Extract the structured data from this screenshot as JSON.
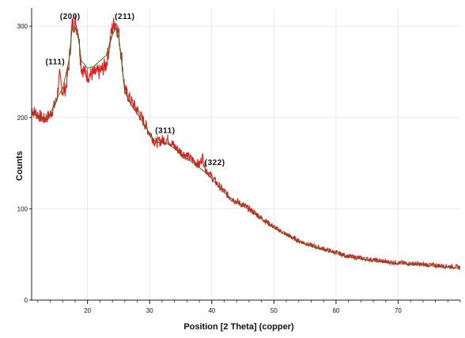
{
  "chart_data": {
    "type": "line",
    "title": "",
    "xlabel": "Position [2 Theta] (copper)",
    "ylabel": "Counts",
    "xlim": [
      11,
      80
    ],
    "ylim": [
      0,
      320
    ],
    "x_ticks": [
      20,
      30,
      40,
      50,
      60,
      70
    ],
    "x_tick_labels": [
      "20",
      "30",
      "40",
      "50",
      "60",
      "70"
    ],
    "y_ticks": [
      0,
      100,
      200,
      300
    ],
    "y_tick_labels": [
      "0",
      "100",
      "200",
      "300"
    ],
    "grid": true,
    "colors": {
      "observed": "#dd1d1d",
      "fit": "#1f7a1f"
    },
    "series": [
      {
        "x": [
          11,
          12,
          13,
          14,
          15,
          15.5,
          16,
          16.5,
          17,
          17.5,
          18,
          18.5,
          19,
          19.5,
          20,
          21,
          22,
          23,
          24,
          24.5,
          25,
          25.5,
          26,
          27,
          28,
          29,
          30,
          31,
          32,
          33,
          34,
          35,
          36,
          37,
          38,
          38.5,
          39,
          40,
          41,
          42,
          43,
          44,
          45,
          46,
          48,
          50,
          52,
          54,
          56,
          58,
          60,
          62,
          64,
          66,
          68,
          70,
          72,
          74,
          76,
          78,
          80
        ],
        "values": [
          208,
          203,
          198,
          203,
          218,
          245,
          228,
          232,
          258,
          300,
          305,
          295,
          255,
          250,
          246,
          248,
          250,
          258,
          298,
          305,
          292,
          265,
          230,
          218,
          208,
          196,
          183,
          172,
          175,
          176,
          168,
          162,
          158,
          153,
          148,
          157,
          144,
          135,
          126,
          119,
          112,
          108,
          104,
          100,
          90,
          80,
          72,
          65,
          60,
          56,
          52,
          48,
          46,
          44,
          42,
          41,
          40,
          39,
          38,
          37,
          36
        ]
      },
      {
        "x": [
          11,
          12,
          13,
          14,
          15,
          16,
          17,
          17.5,
          18,
          18.5,
          19,
          20,
          21,
          22,
          23,
          24,
          24.5,
          25,
          25.5,
          26,
          27,
          28,
          29,
          30,
          31,
          32,
          33,
          34,
          35,
          36,
          37,
          38,
          39,
          40,
          41,
          42,
          43,
          44,
          45,
          46,
          48,
          50,
          52,
          54,
          56,
          58,
          60,
          62,
          64,
          66,
          68,
          70,
          72,
          74,
          76,
          78,
          80
        ],
        "values": [
          205,
          201,
          199,
          204,
          220,
          232,
          262,
          296,
          298,
          290,
          262,
          254,
          256,
          262,
          268,
          290,
          298,
          288,
          260,
          228,
          214,
          204,
          194,
          182,
          173,
          172,
          171,
          166,
          160,
          155,
          150,
          145,
          140,
          133,
          125,
          118,
          112,
          107,
          103,
          99,
          89,
          79,
          71,
          64,
          59,
          55,
          51,
          47,
          45,
          43,
          41,
          40,
          39,
          38,
          37,
          36,
          35
        ]
      }
    ],
    "annotations": [
      {
        "text": "(111)",
        "x": 14.8,
        "y": 258
      },
      {
        "text": "(200)",
        "x": 17.2,
        "y": 308
      },
      {
        "text": "(211)",
        "x": 26.0,
        "y": 308
      },
      {
        "text": "(311)",
        "x": 32.5,
        "y": 183
      },
      {
        "text": "(322)",
        "x": 40.5,
        "y": 148
      }
    ]
  }
}
